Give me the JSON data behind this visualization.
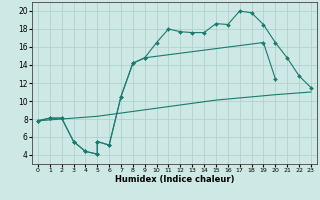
{
  "xlabel": "Humidex (Indice chaleur)",
  "xlim": [
    -0.5,
    23.5
  ],
  "ylim": [
    3,
    21
  ],
  "xticks": [
    0,
    1,
    2,
    3,
    4,
    5,
    6,
    7,
    8,
    9,
    10,
    11,
    12,
    13,
    14,
    15,
    16,
    17,
    18,
    19,
    20,
    21,
    22,
    23
  ],
  "yticks": [
    4,
    6,
    8,
    10,
    12,
    14,
    16,
    18,
    20
  ],
  "bg_color": "#cde8e5",
  "grid_color": "#aacfcc",
  "line_color": "#1a7a6e",
  "line1_x": [
    0,
    1,
    2,
    3,
    4,
    5,
    5,
    6,
    7,
    8,
    9,
    10,
    11,
    12,
    13,
    14,
    15,
    16,
    17,
    18,
    19,
    20,
    21,
    22,
    23
  ],
  "line1_y": [
    7.8,
    8.1,
    8.1,
    5.5,
    4.4,
    4.1,
    5.5,
    5.1,
    10.5,
    14.2,
    14.8,
    16.5,
    18.0,
    17.7,
    17.6,
    17.6,
    18.6,
    18.5,
    20.0,
    19.8,
    18.5,
    16.5,
    14.8,
    12.8,
    11.5
  ],
  "line2_x": [
    0,
    5,
    10,
    15,
    20,
    23
  ],
  "line2_y": [
    7.8,
    8.3,
    9.2,
    10.1,
    10.7,
    11.0
  ],
  "line3_x": [
    0,
    1,
    2,
    3,
    4,
    5,
    5,
    6,
    7,
    8,
    9,
    19,
    20
  ],
  "line3_y": [
    7.8,
    8.1,
    8.1,
    5.5,
    4.4,
    4.1,
    5.5,
    5.1,
    10.5,
    14.2,
    14.8,
    16.5,
    12.5
  ]
}
